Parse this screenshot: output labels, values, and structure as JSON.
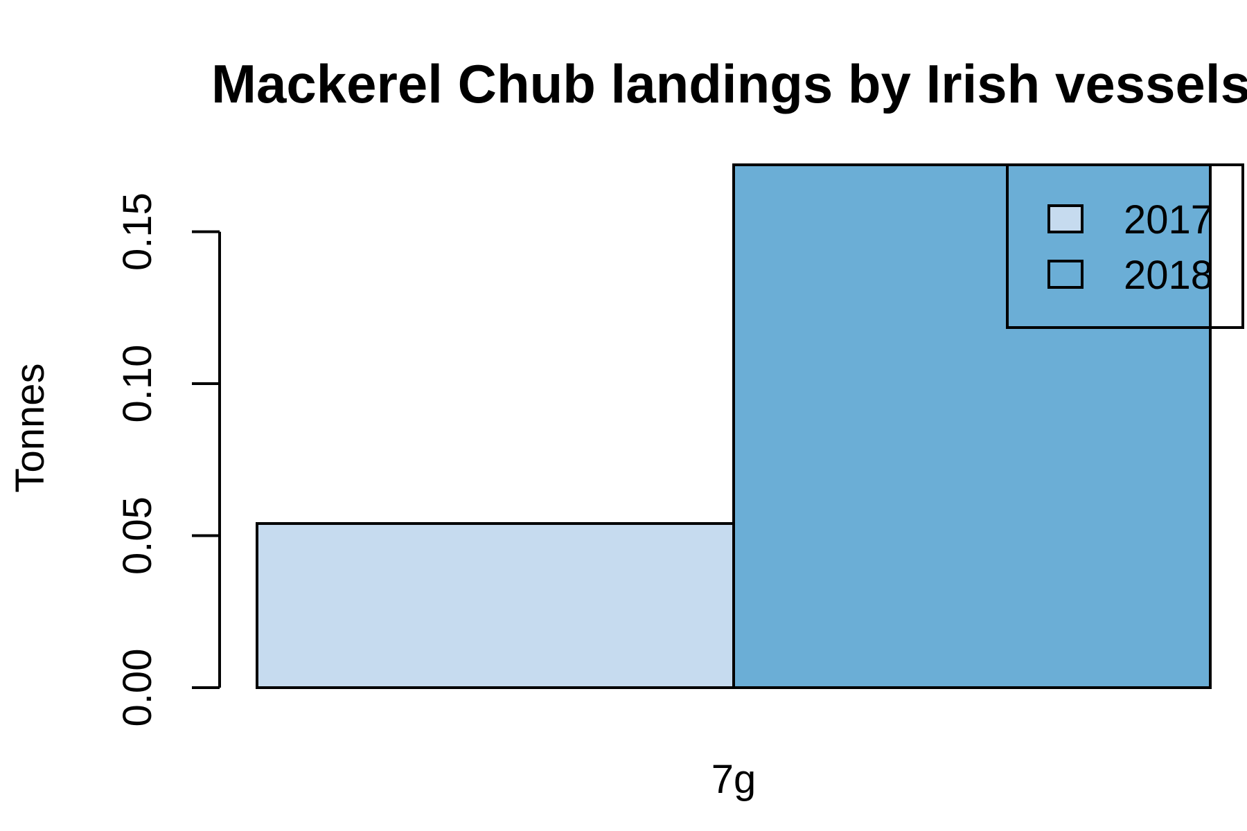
{
  "chart_data": {
    "type": "bar",
    "title": "Mackerel Chub landings by Irish vessels",
    "xlabel": "",
    "ylabel": "Tonnes",
    "categories": [
      "7g"
    ],
    "series": [
      {
        "name": "2017",
        "values": [
          0.054
        ],
        "color": "#c6dbef"
      },
      {
        "name": "2018",
        "values": [
          0.172
        ],
        "color": "#6baed6"
      }
    ],
    "ylim": [
      0,
      0.172
    ],
    "yticks": [
      {
        "value": 0.0,
        "label": "0.00"
      },
      {
        "value": 0.05,
        "label": "0.05"
      },
      {
        "value": 0.1,
        "label": "0.10"
      },
      {
        "value": 0.15,
        "label": "0.15"
      }
    ],
    "grid": false,
    "legend": {
      "position": "top-right",
      "entries": [
        "2017",
        "2018"
      ]
    }
  }
}
